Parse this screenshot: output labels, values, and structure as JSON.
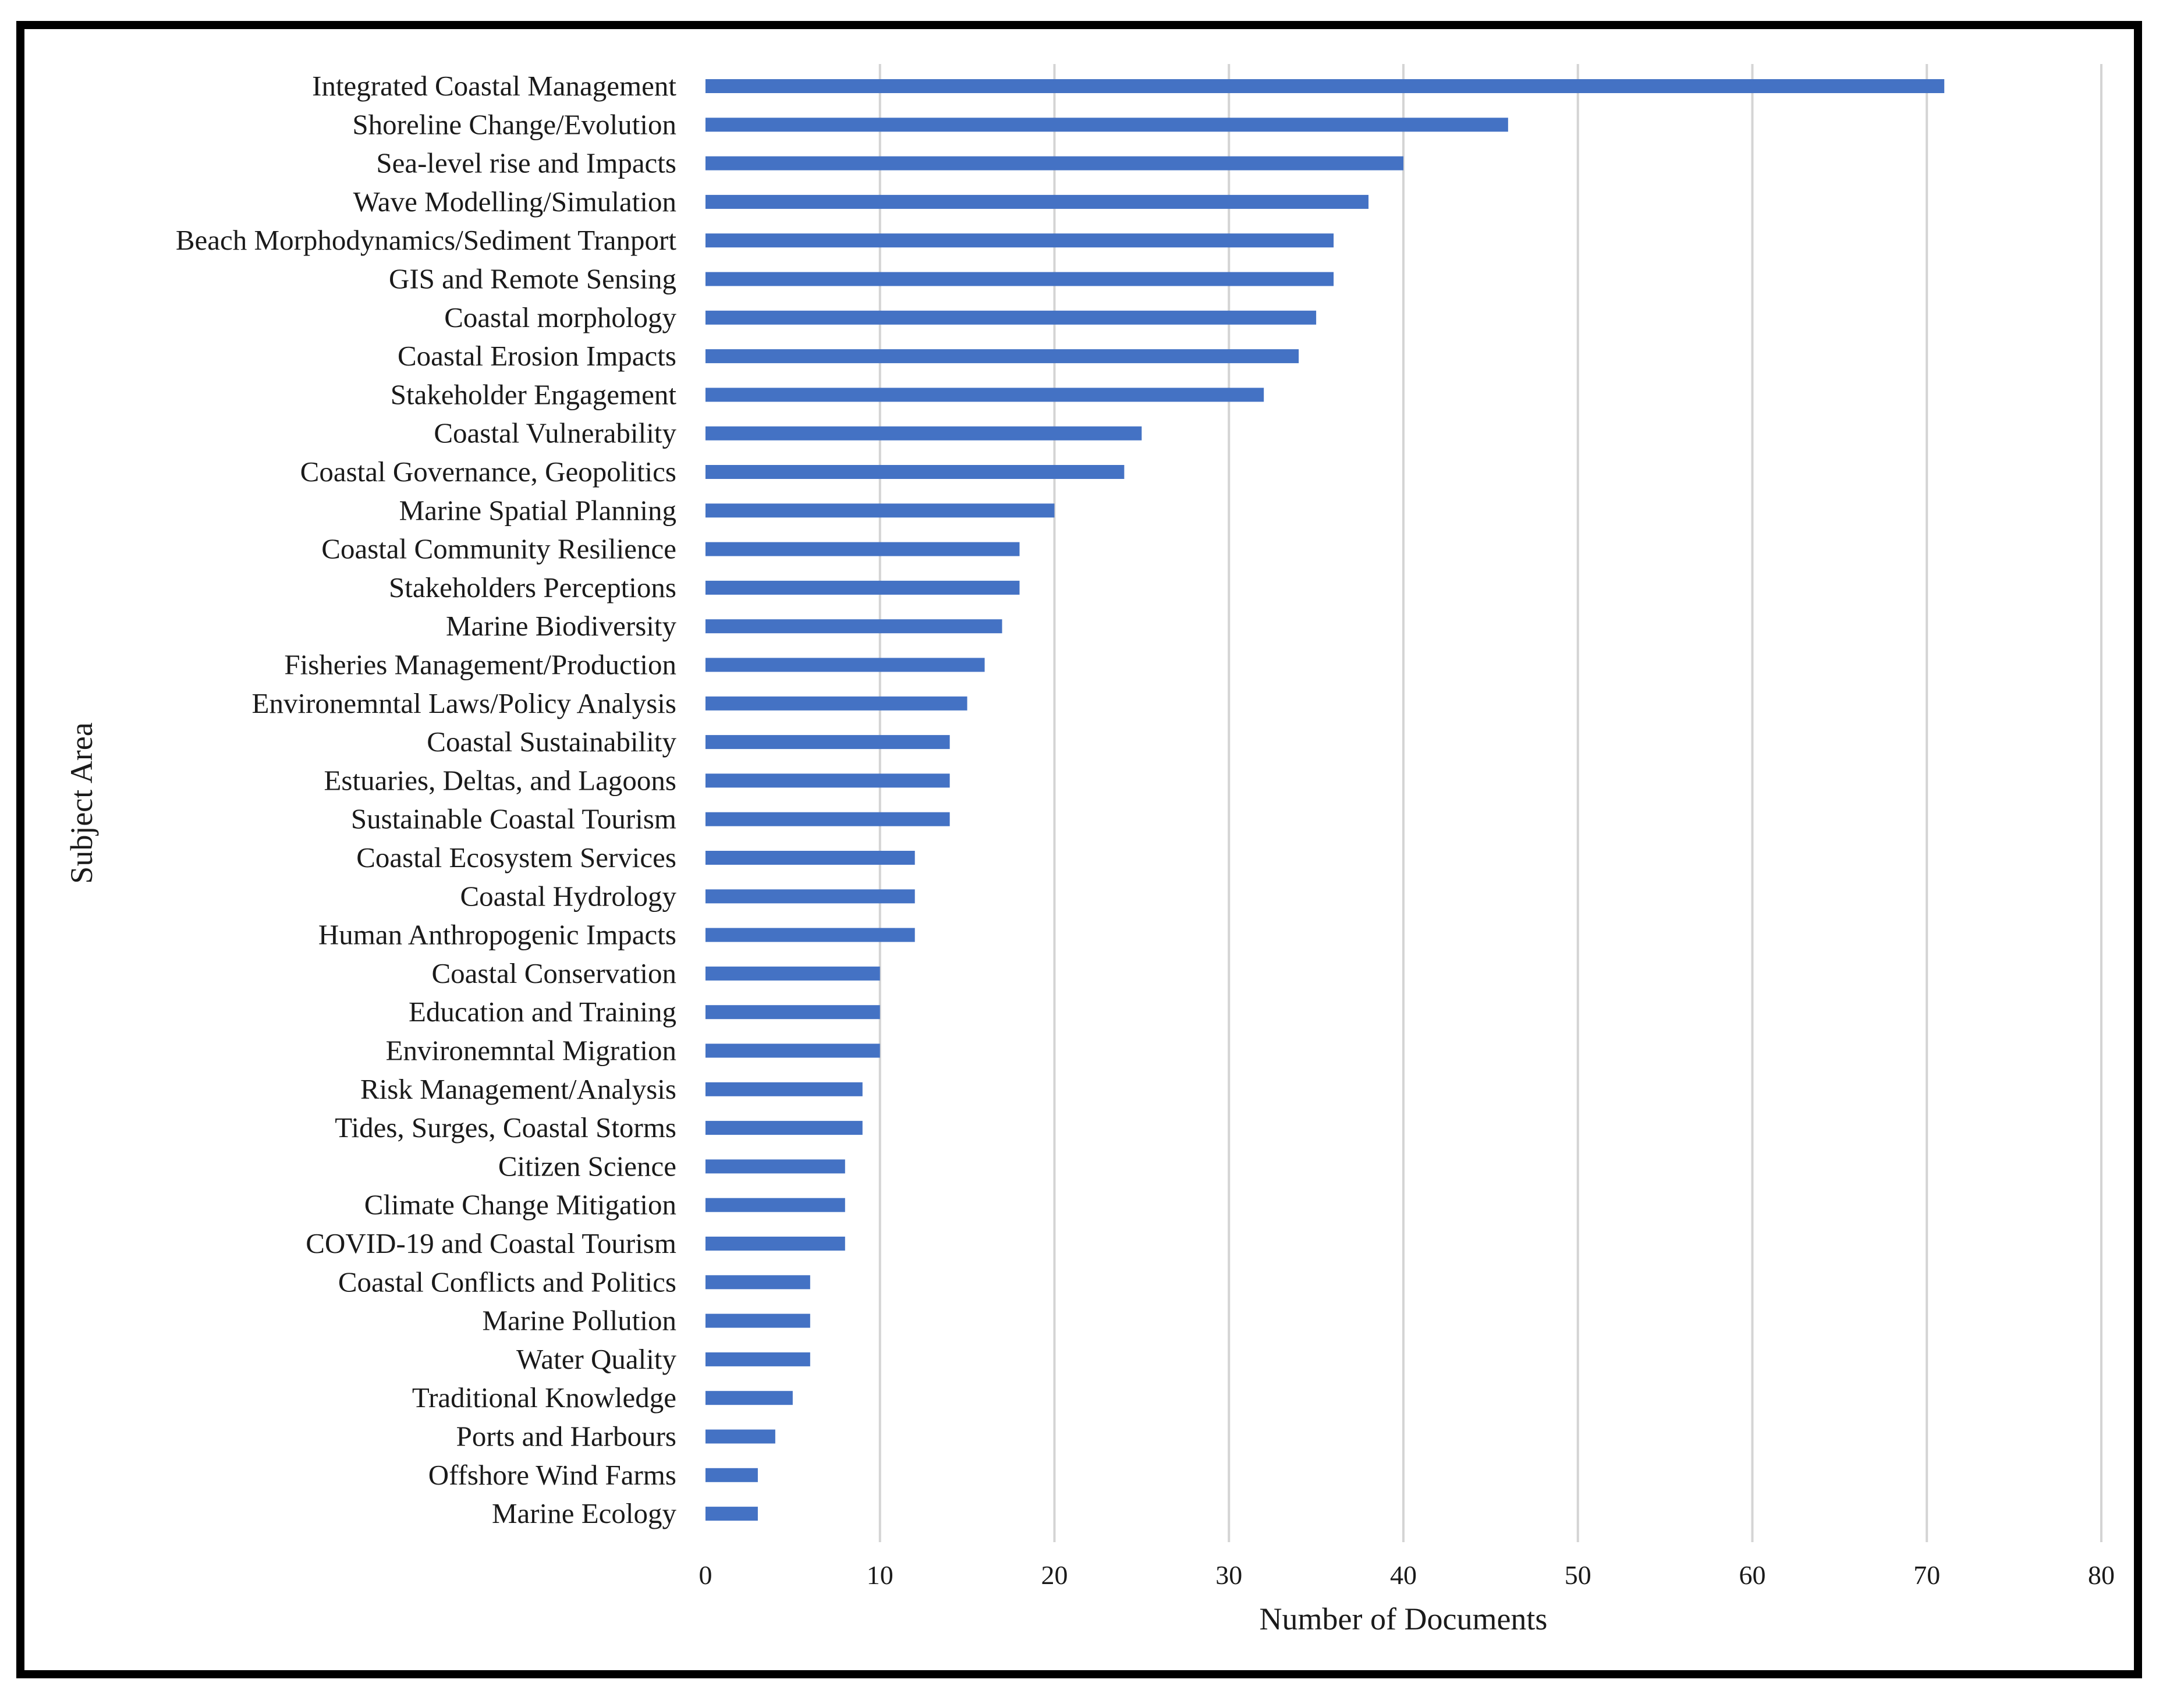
{
  "chart_data": {
    "type": "bar",
    "orientation": "horizontal",
    "xlabel": "Number of Documents",
    "ylabel": "Subject Area",
    "xlim": [
      0,
      80
    ],
    "xticks": [
      0,
      10,
      20,
      30,
      40,
      50,
      60,
      70,
      80
    ],
    "grid": "vertical",
    "bar_color": "#4472C4",
    "categories": [
      "Integrated Coastal Management",
      "Shoreline Change/Evolution",
      "Sea-level rise and Impacts",
      "Wave Modelling/Simulation",
      "Beach Morphodynamics/Sediment Tranport",
      "GIS and Remote Sensing",
      "Coastal morphology",
      "Coastal Erosion Impacts",
      "Stakeholder Engagement",
      "Coastal Vulnerability",
      "Coastal Governance, Geopolitics",
      "Marine Spatial Planning",
      "Coastal Community Resilience",
      "Stakeholders Perceptions",
      "Marine Biodiversity",
      "Fisheries Management/Production",
      "Environemntal Laws/Policy Analysis",
      "Coastal Sustainability",
      "Estuaries, Deltas, and Lagoons",
      "Sustainable Coastal Tourism",
      "Coastal Ecosystem Services",
      "Coastal Hydrology",
      "Human Anthropogenic Impacts",
      "Coastal Conservation",
      "Education and Training",
      "Environemntal Migration",
      "Risk Management/Analysis",
      "Tides, Surges, Coastal Storms",
      "Citizen Science",
      "Climate Change Mitigation",
      "COVID-19 and Coastal Tourism",
      "Coastal Conflicts and Politics",
      "Marine Pollution",
      "Water Quality",
      "Traditional Knowledge",
      "Ports and Harbours",
      "Offshore Wind Farms",
      "Marine Ecology"
    ],
    "values": [
      71,
      46,
      40,
      38,
      36,
      36,
      35,
      34,
      32,
      25,
      24,
      20,
      18,
      18,
      17,
      16,
      15,
      14,
      14,
      14,
      12,
      12,
      12,
      10,
      10,
      10,
      9,
      9,
      8,
      8,
      8,
      6,
      6,
      6,
      5,
      4,
      3,
      3
    ]
  }
}
